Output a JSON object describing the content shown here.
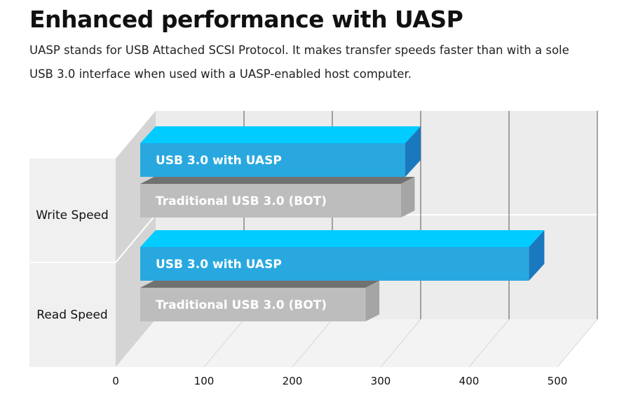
{
  "header": {
    "title": "Enhanced performance with UASP",
    "subtitle_line1": "UASP stands for USB Attached SCSI Protocol. It makes transfer speeds faster than with a sole",
    "subtitle_line2": "USB 3.0 interface when used with a UASP-enabled host computer."
  },
  "chart_data": {
    "type": "bar",
    "orientation": "horizontal",
    "style": "3d",
    "categories": [
      "Write Speed",
      "Read Speed"
    ],
    "series": [
      {
        "name": "USB 3.0 with UASP",
        "values": [
          300,
          440
        ],
        "color": "#29a8e0"
      },
      {
        "name": "Traditional USB 3.0 (BOT)",
        "values": [
          295,
          255
        ],
        "color": "#bdbdbd"
      }
    ],
    "xticks": [
      0,
      100,
      200,
      300,
      400,
      500
    ],
    "xlim": [
      0,
      500
    ],
    "grid": true,
    "legend": "none"
  }
}
